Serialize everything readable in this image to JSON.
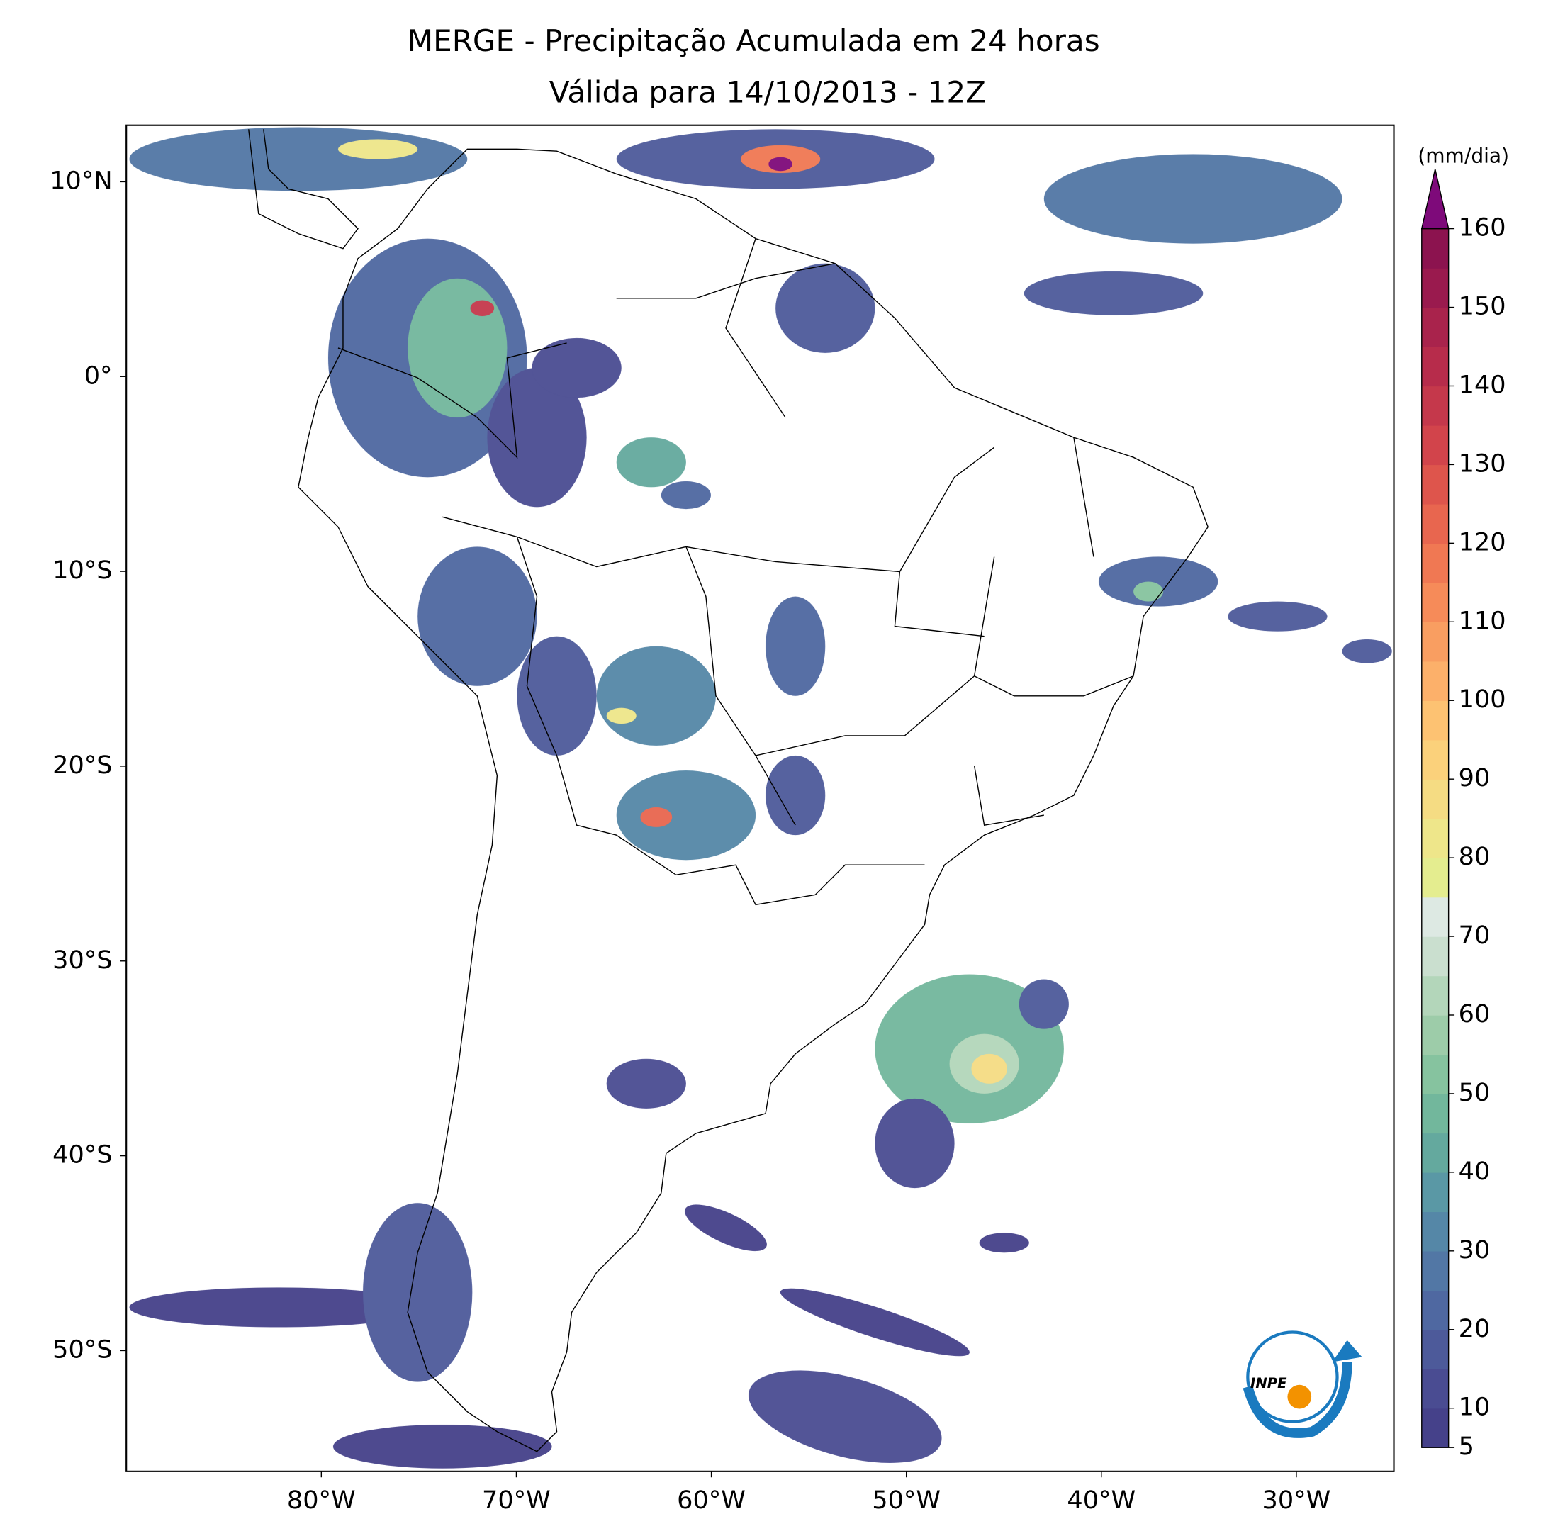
{
  "chart_data": {
    "type": "map",
    "title": "MERGE - Precipitação Acumulada em 24 horas",
    "subtitle": "Válida para 14/10/2013 - 12Z",
    "xlim": [
      -90,
      -25
    ],
    "ylim": [
      -56.2,
      12.9
    ],
    "xticks": [
      {
        "value": -80,
        "label": "80°W"
      },
      {
        "value": -70,
        "label": "70°W"
      },
      {
        "value": -60,
        "label": "60°W"
      },
      {
        "value": -50,
        "label": "50°W"
      },
      {
        "value": -40,
        "label": "40°W"
      },
      {
        "value": -30,
        "label": "30°W"
      }
    ],
    "yticks": [
      {
        "value": 10,
        "label": "10°N"
      },
      {
        "value": 0,
        "label": "0°"
      },
      {
        "value": -10,
        "label": "10°S"
      },
      {
        "value": -20,
        "label": "20°S"
      },
      {
        "value": -30,
        "label": "30°S"
      },
      {
        "value": -40,
        "label": "40°S"
      },
      {
        "value": -50,
        "label": "50°S"
      }
    ],
    "colorbar": {
      "label": "(mm/dia)",
      "lim": [
        5,
        160
      ],
      "ticks": [
        5,
        10,
        20,
        30,
        40,
        50,
        60,
        70,
        80,
        90,
        100,
        110,
        120,
        130,
        140,
        150,
        160
      ],
      "colors": [
        "#45418a",
        "#4a4c92",
        "#4d5a9a",
        "#4f68a1",
        "#5277a5",
        "#5587a7",
        "#5a98a5",
        "#64a99e",
        "#72b79c",
        "#86c39f",
        "#9dcca9",
        "#b3d6ba",
        "#cadfcf",
        "#dde9e3",
        "#e4ed8f",
        "#eee68a",
        "#f5dc83",
        "#fbd17b",
        "#fdc272",
        "#fcb06a",
        "#f99e61",
        "#f68b59",
        "#f07853",
        "#e8664f",
        "#de554c",
        "#d2444b",
        "#c5384b",
        "#b72c4b",
        "#a9234c",
        "#9a1a4e",
        "#8c134f"
      ],
      "extend_color": "#7e0a7a"
    },
    "logo_text": "INPE"
  }
}
